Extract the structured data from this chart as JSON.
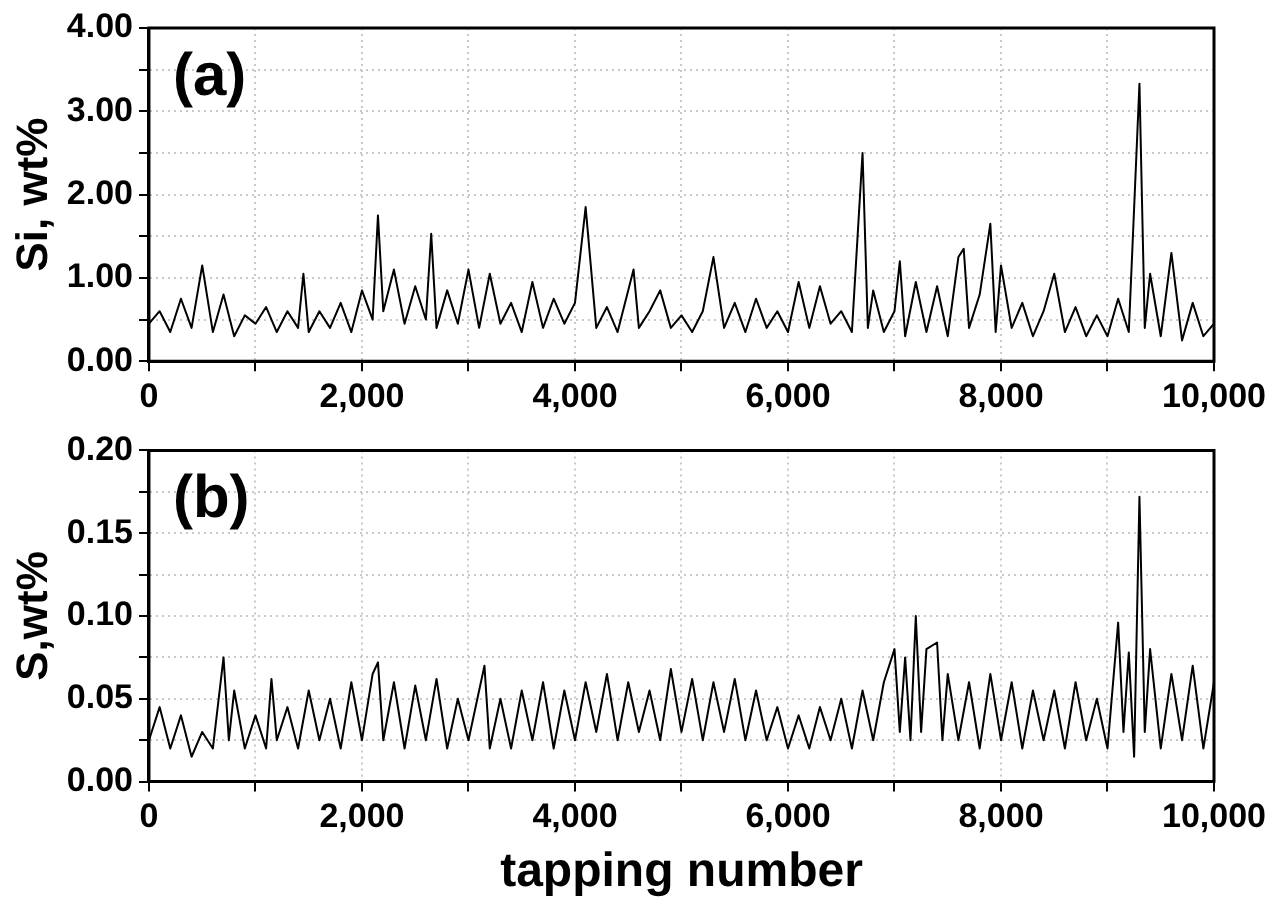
{
  "chart_data": [
    {
      "type": "line",
      "ylabel": "Si, wt%",
      "annotations": [
        "(a)"
      ],
      "grid": true,
      "marker": "none",
      "line_style": "solid",
      "xlim": [
        0,
        10000
      ],
      "xticks": [
        {
          "value": 0,
          "label": "0"
        },
        {
          "value": 1000,
          "label": null
        },
        {
          "value": 2000,
          "label": "2,000"
        },
        {
          "value": 3000,
          "label": null
        },
        {
          "value": 4000,
          "label": "4,000"
        },
        {
          "value": 5000,
          "label": null
        },
        {
          "value": 6000,
          "label": "6,000"
        },
        {
          "value": 7000,
          "label": null
        },
        {
          "value": 8000,
          "label": "8,000"
        },
        {
          "value": 9000,
          "label": null
        },
        {
          "value": 10000,
          "label": "10,000"
        }
      ],
      "ylim": [
        0,
        4
      ],
      "yticks": [
        {
          "value": 0,
          "label": "0.00"
        },
        {
          "value": 0.5,
          "label": null
        },
        {
          "value": 1,
          "label": "1.00"
        },
        {
          "value": 1.5,
          "label": null
        },
        {
          "value": 2,
          "label": "2.00"
        },
        {
          "value": 2.5,
          "label": null
        },
        {
          "value": 3,
          "label": "3.00"
        },
        {
          "value": 3.5,
          "label": null
        },
        {
          "value": 4,
          "label": "4.00"
        }
      ],
      "series": [
        {
          "color": "#000000",
          "x": [
            0,
            100,
            200,
            300,
            400,
            500,
            600,
            700,
            800,
            900,
            1000,
            1100,
            1200,
            1300,
            1400,
            1450,
            1500,
            1600,
            1700,
            1800,
            1900,
            2000,
            2100,
            2150,
            2200,
            2300,
            2400,
            2500,
            2600,
            2650,
            2700,
            2800,
            2900,
            3000,
            3100,
            3200,
            3300,
            3400,
            3500,
            3600,
            3700,
            3800,
            3900,
            4000,
            4100,
            4200,
            4300,
            4400,
            4550,
            4600,
            4700,
            4800,
            4900,
            5000,
            5100,
            5200,
            5300,
            5400,
            5500,
            5600,
            5700,
            5800,
            5900,
            6000,
            6100,
            6200,
            6300,
            6400,
            6500,
            6600,
            6700,
            6750,
            6800,
            6900,
            7000,
            7050,
            7100,
            7200,
            7300,
            7400,
            7500,
            7600,
            7650,
            7700,
            7800,
            7900,
            7950,
            8000,
            8100,
            8200,
            8300,
            8400,
            8500,
            8600,
            8700,
            8800,
            8900,
            9000,
            9100,
            9200,
            9300,
            9350,
            9400,
            9500,
            9600,
            9700,
            9800,
            9900,
            10000
          ],
          "values": [
            0.45,
            0.6,
            0.35,
            0.75,
            0.4,
            1.15,
            0.35,
            0.8,
            0.3,
            0.55,
            0.45,
            0.65,
            0.35,
            0.6,
            0.4,
            1.05,
            0.35,
            0.6,
            0.4,
            0.7,
            0.35,
            0.85,
            0.5,
            1.75,
            0.6,
            1.1,
            0.45,
            0.9,
            0.5,
            1.53,
            0.4,
            0.85,
            0.45,
            1.1,
            0.4,
            1.05,
            0.45,
            0.7,
            0.35,
            0.95,
            0.4,
            0.75,
            0.45,
            0.7,
            1.85,
            0.4,
            0.65,
            0.35,
            1.1,
            0.4,
            0.6,
            0.85,
            0.4,
            0.55,
            0.35,
            0.6,
            1.25,
            0.4,
            0.7,
            0.35,
            0.75,
            0.4,
            0.6,
            0.35,
            0.95,
            0.4,
            0.9,
            0.45,
            0.6,
            0.35,
            2.5,
            0.4,
            0.85,
            0.35,
            0.6,
            1.2,
            0.3,
            0.95,
            0.35,
            0.9,
            0.3,
            1.25,
            1.35,
            0.4,
            0.8,
            1.65,
            0.35,
            1.15,
            0.4,
            0.7,
            0.3,
            0.6,
            1.05,
            0.35,
            0.65,
            0.3,
            0.55,
            0.3,
            0.75,
            0.35,
            3.33,
            0.4,
            1.05,
            0.3,
            1.3,
            0.25,
            0.7,
            0.3,
            0.45
          ]
        }
      ]
    },
    {
      "type": "line",
      "xlabel": "tapping number",
      "ylabel": "S,wt%",
      "annotations": [
        "(b)"
      ],
      "grid": true,
      "marker": "none",
      "line_style": "solid",
      "xlim": [
        0,
        10000
      ],
      "xticks": [
        {
          "value": 0,
          "label": "0"
        },
        {
          "value": 1000,
          "label": null
        },
        {
          "value": 2000,
          "label": "2,000"
        },
        {
          "value": 3000,
          "label": null
        },
        {
          "value": 4000,
          "label": "4,000"
        },
        {
          "value": 5000,
          "label": null
        },
        {
          "value": 6000,
          "label": "6,000"
        },
        {
          "value": 7000,
          "label": null
        },
        {
          "value": 8000,
          "label": "8,000"
        },
        {
          "value": 9000,
          "label": null
        },
        {
          "value": 10000,
          "label": "10,000"
        }
      ],
      "ylim": [
        0,
        0.2
      ],
      "yticks": [
        {
          "value": 0,
          "label": "0.00"
        },
        {
          "value": 0.025,
          "label": null
        },
        {
          "value": 0.05,
          "label": "0.05"
        },
        {
          "value": 0.075,
          "label": null
        },
        {
          "value": 0.1,
          "label": "0.10"
        },
        {
          "value": 0.125,
          "label": null
        },
        {
          "value": 0.15,
          "label": "0.15"
        },
        {
          "value": 0.175,
          "label": null
        },
        {
          "value": 0.2,
          "label": "0.20"
        }
      ],
      "series": [
        {
          "color": "#000000",
          "x": [
            0,
            100,
            200,
            300,
            400,
            500,
            600,
            700,
            750,
            800,
            900,
            1000,
            1100,
            1150,
            1200,
            1300,
            1400,
            1500,
            1600,
            1700,
            1800,
            1900,
            2000,
            2100,
            2150,
            2200,
            2300,
            2400,
            2500,
            2600,
            2700,
            2800,
            2900,
            3000,
            3100,
            3150,
            3200,
            3300,
            3400,
            3500,
            3600,
            3700,
            3800,
            3900,
            4000,
            4100,
            4200,
            4300,
            4400,
            4500,
            4600,
            4700,
            4800,
            4900,
            5000,
            5100,
            5200,
            5300,
            5400,
            5500,
            5600,
            5700,
            5800,
            5900,
            6000,
            6100,
            6200,
            6300,
            6400,
            6500,
            6600,
            6700,
            6800,
            6900,
            7000,
            7050,
            7100,
            7150,
            7200,
            7250,
            7300,
            7400,
            7450,
            7500,
            7600,
            7700,
            7800,
            7900,
            8000,
            8100,
            8200,
            8300,
            8400,
            8500,
            8600,
            8700,
            8800,
            8900,
            9000,
            9100,
            9150,
            9200,
            9250,
            9300,
            9350,
            9400,
            9500,
            9600,
            9700,
            9800,
            9900,
            10000
          ],
          "values": [
            0.025,
            0.045,
            0.02,
            0.04,
            0.015,
            0.03,
            0.02,
            0.075,
            0.025,
            0.055,
            0.02,
            0.04,
            0.02,
            0.062,
            0.025,
            0.045,
            0.02,
            0.055,
            0.025,
            0.05,
            0.02,
            0.06,
            0.025,
            0.065,
            0.072,
            0.025,
            0.06,
            0.02,
            0.058,
            0.025,
            0.062,
            0.02,
            0.05,
            0.025,
            0.055,
            0.07,
            0.02,
            0.05,
            0.02,
            0.055,
            0.025,
            0.06,
            0.02,
            0.055,
            0.025,
            0.06,
            0.03,
            0.065,
            0.025,
            0.06,
            0.03,
            0.055,
            0.025,
            0.068,
            0.03,
            0.062,
            0.025,
            0.06,
            0.03,
            0.062,
            0.025,
            0.055,
            0.025,
            0.045,
            0.02,
            0.04,
            0.02,
            0.045,
            0.025,
            0.05,
            0.02,
            0.055,
            0.025,
            0.06,
            0.08,
            0.03,
            0.075,
            0.025,
            0.1,
            0.03,
            0.08,
            0.084,
            0.025,
            0.065,
            0.025,
            0.06,
            0.02,
            0.065,
            0.025,
            0.06,
            0.02,
            0.055,
            0.025,
            0.055,
            0.02,
            0.06,
            0.025,
            0.05,
            0.02,
            0.096,
            0.03,
            0.078,
            0.015,
            0.172,
            0.03,
            0.08,
            0.02,
            0.065,
            0.025,
            0.07,
            0.02,
            0.06
          ]
        }
      ]
    }
  ]
}
